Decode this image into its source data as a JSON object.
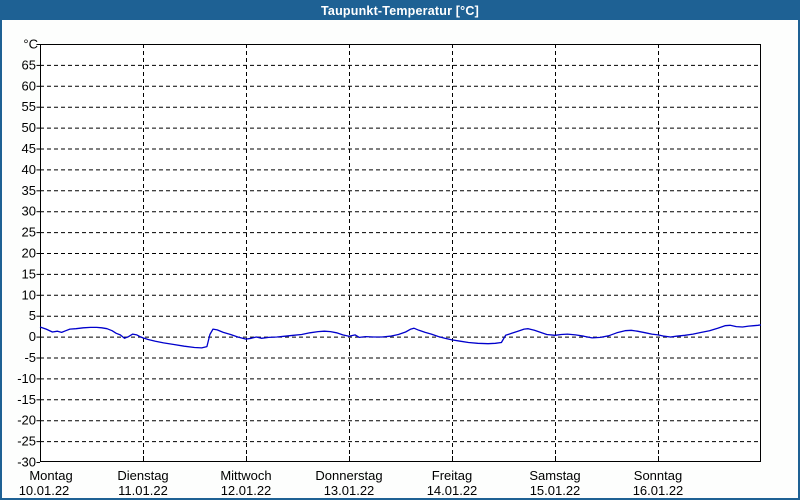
{
  "window": {
    "title": "Taupunkt-Temperatur [°C]"
  },
  "colors": {
    "titlebar_bg": "#1E6194",
    "titlebar_text": "#FFFFFF",
    "frame_border": "#1E6194",
    "background": "#FDFEFD",
    "plot_background": "#FFFFFF",
    "axis": "#000000",
    "grid": "#000000",
    "line": "#0000CC"
  },
  "chart_data": {
    "type": "line",
    "title": "Taupunkt-Temperatur [°C]",
    "y_unit_label": "°C",
    "ylim": [
      -30,
      70
    ],
    "y_tick_step": 5,
    "y_tick_labels": [
      "-30",
      "-25",
      "-20",
      "-15",
      "-10",
      "-5",
      "0",
      "5",
      "10",
      "15",
      "20",
      "25",
      "30",
      "35",
      "40",
      "45",
      "50",
      "55",
      "60",
      "65"
    ],
    "grid": true,
    "grid_style": "dashed",
    "x_days": [
      {
        "name": "Montag",
        "date": "10.01.22"
      },
      {
        "name": "Dienstag",
        "date": "11.01.22"
      },
      {
        "name": "Mittwoch",
        "date": "12.01.22"
      },
      {
        "name": "Donnerstag",
        "date": "13.01.22"
      },
      {
        "name": "Freitag",
        "date": "14.01.22"
      },
      {
        "name": "Samstag",
        "date": "15.01.22"
      },
      {
        "name": "Sonntag",
        "date": "16.01.22"
      }
    ],
    "series": [
      {
        "name": "Taupunkt",
        "color": "#0000CC",
        "x_unit": "days_from_monday_start",
        "points": [
          [
            0.0,
            2.3
          ],
          [
            0.06,
            1.8
          ],
          [
            0.12,
            1.1
          ],
          [
            0.17,
            1.3
          ],
          [
            0.21,
            1.0
          ],
          [
            0.25,
            1.4
          ],
          [
            0.29,
            1.8
          ],
          [
            0.35,
            1.9
          ],
          [
            0.42,
            2.1
          ],
          [
            0.49,
            2.2
          ],
          [
            0.55,
            2.2
          ],
          [
            0.6,
            2.1
          ],
          [
            0.65,
            1.9
          ],
          [
            0.7,
            1.4
          ],
          [
            0.74,
            0.8
          ],
          [
            0.78,
            0.4
          ],
          [
            0.82,
            -0.4
          ],
          [
            0.86,
            0.0
          ],
          [
            0.9,
            0.6
          ],
          [
            0.94,
            0.4
          ],
          [
            0.97,
            0.0
          ],
          [
            1.0,
            -0.3
          ],
          [
            1.05,
            -0.7
          ],
          [
            1.12,
            -1.1
          ],
          [
            1.2,
            -1.5
          ],
          [
            1.3,
            -1.9
          ],
          [
            1.4,
            -2.3
          ],
          [
            1.5,
            -2.6
          ],
          [
            1.57,
            -2.7
          ],
          [
            1.62,
            -2.4
          ],
          [
            1.65,
            0.5
          ],
          [
            1.68,
            1.8
          ],
          [
            1.72,
            1.6
          ],
          [
            1.78,
            1.0
          ],
          [
            1.85,
            0.5
          ],
          [
            1.92,
            -0.1
          ],
          [
            2.0,
            -0.6
          ],
          [
            2.05,
            -0.4
          ],
          [
            2.1,
            -0.1
          ],
          [
            2.15,
            -0.4
          ],
          [
            2.22,
            -0.2
          ],
          [
            2.3,
            -0.1
          ],
          [
            2.38,
            0.1
          ],
          [
            2.46,
            0.3
          ],
          [
            2.54,
            0.5
          ],
          [
            2.62,
            0.9
          ],
          [
            2.7,
            1.2
          ],
          [
            2.76,
            1.3
          ],
          [
            2.82,
            1.2
          ],
          [
            2.88,
            0.9
          ],
          [
            2.94,
            0.4
          ],
          [
            3.0,
            0.1
          ],
          [
            3.06,
            0.4
          ],
          [
            3.1,
            -0.2
          ],
          [
            3.16,
            0.0
          ],
          [
            3.24,
            -0.1
          ],
          [
            3.32,
            -0.1
          ],
          [
            3.4,
            0.1
          ],
          [
            3.48,
            0.5
          ],
          [
            3.55,
            1.1
          ],
          [
            3.6,
            1.8
          ],
          [
            3.63,
            2.0
          ],
          [
            3.68,
            1.5
          ],
          [
            3.74,
            1.0
          ],
          [
            3.8,
            0.6
          ],
          [
            3.87,
            0.0
          ],
          [
            3.93,
            -0.4
          ],
          [
            4.0,
            -0.8
          ],
          [
            4.08,
            -1.1
          ],
          [
            4.16,
            -1.4
          ],
          [
            4.25,
            -1.6
          ],
          [
            4.35,
            -1.7
          ],
          [
            4.42,
            -1.6
          ],
          [
            4.48,
            -1.4
          ],
          [
            4.52,
            0.3
          ],
          [
            4.58,
            0.8
          ],
          [
            4.64,
            1.3
          ],
          [
            4.7,
            1.8
          ],
          [
            4.74,
            1.9
          ],
          [
            4.8,
            1.5
          ],
          [
            4.86,
            1.0
          ],
          [
            4.92,
            0.5
          ],
          [
            5.0,
            0.3
          ],
          [
            5.06,
            0.5
          ],
          [
            5.12,
            0.6
          ],
          [
            5.2,
            0.4
          ],
          [
            5.28,
            0.1
          ],
          [
            5.36,
            -0.3
          ],
          [
            5.44,
            -0.2
          ],
          [
            5.52,
            0.2
          ],
          [
            5.6,
            0.9
          ],
          [
            5.68,
            1.4
          ],
          [
            5.74,
            1.5
          ],
          [
            5.8,
            1.3
          ],
          [
            5.88,
            0.9
          ],
          [
            5.94,
            0.6
          ],
          [
            6.0,
            0.4
          ],
          [
            6.06,
            0.1
          ],
          [
            6.12,
            -0.1
          ],
          [
            6.18,
            0.1
          ],
          [
            6.26,
            0.3
          ],
          [
            6.34,
            0.6
          ],
          [
            6.42,
            1.0
          ],
          [
            6.5,
            1.4
          ],
          [
            6.58,
            2.0
          ],
          [
            6.65,
            2.6
          ],
          [
            6.7,
            2.7
          ],
          [
            6.76,
            2.4
          ],
          [
            6.82,
            2.3
          ],
          [
            6.88,
            2.5
          ],
          [
            6.93,
            2.6
          ],
          [
            6.97,
            2.7
          ],
          [
            7.0,
            2.8
          ]
        ]
      }
    ]
  }
}
